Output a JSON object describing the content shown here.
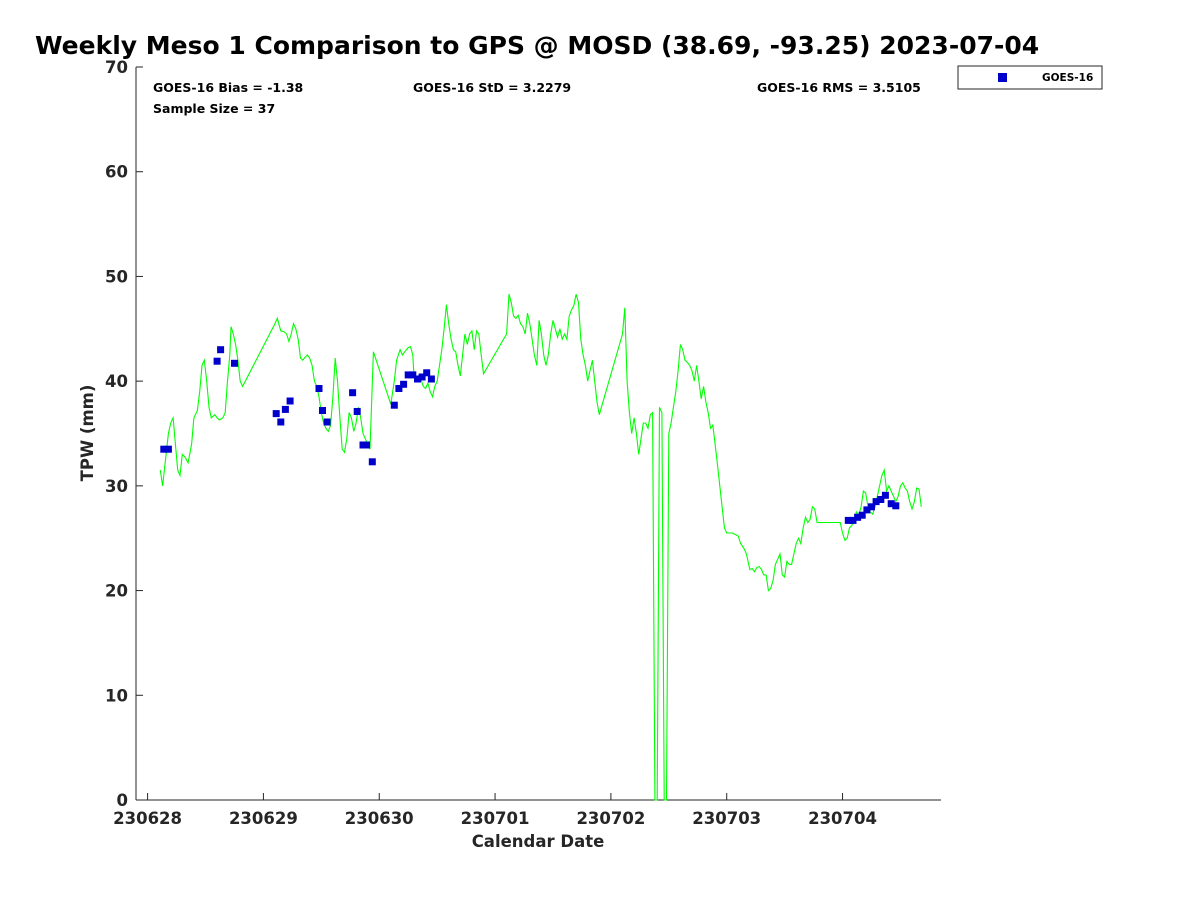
{
  "chart_data": {
    "type": "line",
    "title": "Weekly Meso 1 Comparison to GPS @ MOSD (38.69, -93.25) 2023-07-04",
    "xlabel": "Calendar Date",
    "ylabel": "TPW (mm)",
    "x_unit": "days since 230628 00Z",
    "xlim": [
      -0.1,
      6.85
    ],
    "ylim": [
      0,
      70
    ],
    "yticks": [
      0,
      10,
      20,
      30,
      40,
      50,
      60,
      70
    ],
    "xticks": [
      0,
      1,
      2,
      3,
      4,
      5,
      6
    ],
    "xtick_labels": [
      "230628",
      "230629",
      "230630",
      "230701",
      "230702",
      "230703",
      "230704"
    ],
    "grid": false,
    "legend_position": "top-right",
    "stats": {
      "bias": "GOES-16 Bias = -1.38",
      "sample_size": "Sample Size = 37",
      "std": "GOES-16 StD = 3.2279",
      "rms": "GOES-16 RMS = 3.5105"
    },
    "series": [
      {
        "name": "GPS",
        "kind": "line",
        "color": "#00ff00",
        "points": [
          [
            0.11,
            31.5
          ],
          [
            0.13,
            30
          ],
          [
            0.16,
            33
          ],
          [
            0.18,
            35
          ],
          [
            0.2,
            36
          ],
          [
            0.22,
            36.5
          ],
          [
            0.24,
            34
          ],
          [
            0.26,
            31.5
          ],
          [
            0.28,
            31
          ],
          [
            0.3,
            33
          ],
          [
            0.32,
            32.8
          ],
          [
            0.35,
            32.2
          ],
          [
            0.38,
            34
          ],
          [
            0.4,
            36.5
          ],
          [
            0.43,
            37.2
          ],
          [
            0.45,
            39
          ],
          [
            0.47,
            41.5
          ],
          [
            0.49,
            42
          ],
          [
            0.51,
            40
          ],
          [
            0.53,
            37.5
          ],
          [
            0.55,
            36.5
          ],
          [
            0.58,
            36.8
          ],
          [
            0.6,
            36.5
          ],
          [
            0.62,
            36.3
          ],
          [
            0.65,
            36.5
          ],
          [
            0.67,
            37
          ],
          [
            0.69,
            40
          ],
          [
            0.71,
            42.5
          ],
          [
            0.72,
            45.2
          ],
          [
            0.74,
            44.5
          ],
          [
            0.76,
            43.5
          ],
          [
            0.78,
            42
          ],
          [
            0.8,
            40
          ],
          [
            0.82,
            39.5
          ],
          [
            1.1,
            45.5
          ],
          [
            1.12,
            46
          ],
          [
            1.15,
            44.8
          ],
          [
            1.18,
            44.7
          ],
          [
            1.2,
            44.5
          ],
          [
            1.22,
            43.8
          ],
          [
            1.24,
            44.5
          ],
          [
            1.26,
            45.5
          ],
          [
            1.28,
            45
          ],
          [
            1.3,
            44
          ],
          [
            1.32,
            42.2
          ],
          [
            1.34,
            42
          ],
          [
            1.36,
            42.3
          ],
          [
            1.38,
            42.5
          ],
          [
            1.4,
            42.2
          ],
          [
            1.42,
            41.5
          ],
          [
            1.44,
            40
          ],
          [
            1.46,
            39.5
          ],
          [
            1.48,
            38.5
          ],
          [
            1.5,
            37
          ],
          [
            1.52,
            36
          ],
          [
            1.54,
            35.5
          ],
          [
            1.56,
            35.2
          ],
          [
            1.58,
            35.8
          ],
          [
            1.6,
            38.5
          ],
          [
            1.62,
            42.2
          ],
          [
            1.64,
            40
          ],
          [
            1.66,
            36.5
          ],
          [
            1.68,
            33.5
          ],
          [
            1.7,
            33.2
          ],
          [
            1.72,
            34.5
          ],
          [
            1.74,
            37
          ],
          [
            1.76,
            36.5
          ],
          [
            1.78,
            35.2
          ],
          [
            1.8,
            36
          ],
          [
            1.82,
            37.5
          ],
          [
            1.84,
            36.5
          ],
          [
            1.86,
            35
          ],
          [
            1.88,
            34.5
          ],
          [
            1.9,
            34
          ],
          [
            1.92,
            33.5
          ],
          [
            1.95,
            42.8
          ],
          [
            2.1,
            37.8
          ],
          [
            2.13,
            40
          ],
          [
            2.15,
            42
          ],
          [
            2.18,
            43
          ],
          [
            2.2,
            42.5
          ],
          [
            2.22,
            42.8
          ],
          [
            2.25,
            43.2
          ],
          [
            2.27,
            43.3
          ],
          [
            2.29,
            42.5
          ],
          [
            2.3,
            40.5
          ],
          [
            2.32,
            40.2
          ],
          [
            2.34,
            40.5
          ],
          [
            2.36,
            40.2
          ],
          [
            2.38,
            39.5
          ],
          [
            2.4,
            39.3
          ],
          [
            2.42,
            39.8
          ],
          [
            2.44,
            39
          ],
          [
            2.46,
            38.5
          ],
          [
            2.48,
            39.5
          ],
          [
            2.5,
            40
          ],
          [
            2.52,
            41.5
          ],
          [
            2.54,
            43
          ],
          [
            2.56,
            45
          ],
          [
            2.58,
            47.3
          ],
          [
            2.6,
            45.5
          ],
          [
            2.62,
            44
          ],
          [
            2.64,
            43
          ],
          [
            2.66,
            42.8
          ],
          [
            2.68,
            41.5
          ],
          [
            2.7,
            40.5
          ],
          [
            2.72,
            42.5
          ],
          [
            2.74,
            44.5
          ],
          [
            2.76,
            43.5
          ],
          [
            2.78,
            44.5
          ],
          [
            2.8,
            44.8
          ],
          [
            2.82,
            43
          ],
          [
            2.84,
            44.8
          ],
          [
            2.86,
            44.5
          ],
          [
            2.88,
            42.5
          ],
          [
            2.9,
            40.7
          ],
          [
            3.1,
            44.5
          ],
          [
            3.12,
            48.3
          ],
          [
            3.14,
            47.5
          ],
          [
            3.16,
            46.2
          ],
          [
            3.18,
            46
          ],
          [
            3.2,
            46.3
          ],
          [
            3.22,
            45.5
          ],
          [
            3.24,
            45.2
          ],
          [
            3.26,
            44.5
          ],
          [
            3.28,
            46.5
          ],
          [
            3.3,
            45.5
          ],
          [
            3.32,
            44
          ],
          [
            3.34,
            42.5
          ],
          [
            3.36,
            41.5
          ],
          [
            3.38,
            45.8
          ],
          [
            3.4,
            44.5
          ],
          [
            3.42,
            42.5
          ],
          [
            3.44,
            41.5
          ],
          [
            3.46,
            42.5
          ],
          [
            3.48,
            44.5
          ],
          [
            3.5,
            45.8
          ],
          [
            3.52,
            45
          ],
          [
            3.54,
            44.2
          ],
          [
            3.56,
            45
          ],
          [
            3.58,
            44
          ],
          [
            3.6,
            44.5
          ],
          [
            3.62,
            44
          ],
          [
            3.64,
            46.2
          ],
          [
            3.66,
            46.8
          ],
          [
            3.68,
            47.2
          ],
          [
            3.7,
            48.3
          ],
          [
            3.72,
            47.5
          ],
          [
            3.74,
            44
          ],
          [
            3.76,
            42.5
          ],
          [
            3.78,
            41.5
          ],
          [
            3.8,
            40
          ],
          [
            3.82,
            41
          ],
          [
            3.84,
            42
          ],
          [
            3.86,
            40
          ],
          [
            3.88,
            38
          ],
          [
            3.9,
            36.8
          ],
          [
            4.1,
            44.5
          ],
          [
            4.12,
            47
          ],
          [
            4.14,
            40
          ],
          [
            4.16,
            37
          ],
          [
            4.18,
            35
          ],
          [
            4.2,
            36.5
          ],
          [
            4.22,
            35
          ],
          [
            4.24,
            33
          ],
          [
            4.26,
            34.5
          ],
          [
            4.28,
            36
          ],
          [
            4.3,
            36
          ],
          [
            4.32,
            35.5
          ],
          [
            4.34,
            36.8
          ],
          [
            4.36,
            37
          ],
          [
            4.38,
            0
          ],
          [
            4.4,
            0
          ],
          [
            4.42,
            37.5
          ],
          [
            4.44,
            37
          ],
          [
            4.46,
            0
          ],
          [
            4.48,
            0
          ],
          [
            4.5,
            35
          ],
          [
            4.52,
            36
          ],
          [
            4.54,
            37.5
          ],
          [
            4.56,
            39
          ],
          [
            4.58,
            41
          ],
          [
            4.6,
            43.5
          ],
          [
            4.62,
            43
          ],
          [
            4.64,
            42
          ],
          [
            4.66,
            41.8
          ],
          [
            4.68,
            41.5
          ],
          [
            4.7,
            41
          ],
          [
            4.72,
            40
          ],
          [
            4.74,
            41.5
          ],
          [
            4.76,
            40
          ],
          [
            4.78,
            38.3
          ],
          [
            4.8,
            39.5
          ],
          [
            4.82,
            38
          ],
          [
            4.84,
            37
          ],
          [
            4.86,
            35.5
          ],
          [
            4.88,
            35.8
          ],
          [
            4.9,
            34
          ],
          [
            4.92,
            32
          ],
          [
            4.94,
            30
          ],
          [
            4.96,
            28
          ],
          [
            4.98,
            26
          ],
          [
            5,
            25.5
          ],
          [
            5.05,
            25.5
          ],
          [
            5.1,
            25.2
          ],
          [
            5.12,
            24.5
          ],
          [
            5.15,
            24
          ],
          [
            5.17,
            23.5
          ],
          [
            5.2,
            22
          ],
          [
            5.22,
            22.1
          ],
          [
            5.24,
            21.8
          ],
          [
            5.26,
            22.2
          ],
          [
            5.28,
            22.3
          ],
          [
            5.3,
            22
          ],
          [
            5.32,
            21.5
          ],
          [
            5.34,
            21.5
          ],
          [
            5.36,
            20
          ],
          [
            5.38,
            20.2
          ],
          [
            5.4,
            21
          ],
          [
            5.42,
            22.5
          ],
          [
            5.44,
            23
          ],
          [
            5.46,
            23.5
          ],
          [
            5.48,
            21.5
          ],
          [
            5.5,
            21.3
          ],
          [
            5.52,
            22.8
          ],
          [
            5.54,
            22.5
          ],
          [
            5.56,
            22.5
          ],
          [
            5.58,
            23.5
          ],
          [
            5.6,
            24.5
          ],
          [
            5.62,
            25
          ],
          [
            5.64,
            24.5
          ],
          [
            5.66,
            26
          ],
          [
            5.68,
            27
          ],
          [
            5.7,
            26.5
          ],
          [
            5.72,
            26.8
          ],
          [
            5.74,
            28
          ],
          [
            5.76,
            27.8
          ],
          [
            5.78,
            26.5
          ],
          [
            5.98,
            26.5
          ],
          [
            6,
            25.5
          ],
          [
            6.02,
            24.8
          ],
          [
            6.04,
            25
          ],
          [
            6.06,
            26
          ],
          [
            6.08,
            26.2
          ],
          [
            6.1,
            26.8
          ],
          [
            6.12,
            27.5
          ],
          [
            6.14,
            27.2
          ],
          [
            6.16,
            28
          ],
          [
            6.18,
            29.5
          ],
          [
            6.2,
            29.3
          ],
          [
            6.22,
            28
          ],
          [
            6.24,
            27.5
          ],
          [
            6.26,
            27.3
          ],
          [
            6.28,
            28
          ],
          [
            6.3,
            29
          ],
          [
            6.32,
            30
          ],
          [
            6.34,
            31
          ],
          [
            6.36,
            31.5
          ],
          [
            6.38,
            29.5
          ],
          [
            6.4,
            30
          ],
          [
            6.42,
            29.5
          ],
          [
            6.44,
            29
          ],
          [
            6.46,
            28.5
          ],
          [
            6.48,
            29
          ],
          [
            6.5,
            30
          ],
          [
            6.52,
            30.3
          ],
          [
            6.54,
            29.8
          ],
          [
            6.56,
            29.5
          ],
          [
            6.58,
            28.5
          ],
          [
            6.6,
            27.8
          ],
          [
            6.62,
            28.5
          ],
          [
            6.64,
            29.8
          ],
          [
            6.66,
            29.7
          ],
          [
            6.68,
            28
          ]
        ]
      },
      {
        "name": "GOES-16",
        "kind": "scatter",
        "color": "#0000cc",
        "points": [
          [
            0.14,
            33.5
          ],
          [
            0.18,
            33.5
          ],
          [
            0.6,
            41.9
          ],
          [
            0.63,
            43
          ],
          [
            0.75,
            41.7
          ],
          [
            1.11,
            36.9
          ],
          [
            1.15,
            36.1
          ],
          [
            1.19,
            37.3
          ],
          [
            1.23,
            38.1
          ],
          [
            1.48,
            39.3
          ],
          [
            1.51,
            37.2
          ],
          [
            1.55,
            36.1
          ],
          [
            1.77,
            38.9
          ],
          [
            1.81,
            37.1
          ],
          [
            1.86,
            33.9
          ],
          [
            1.89,
            33.9
          ],
          [
            1.94,
            32.3
          ],
          [
            2.13,
            37.7
          ],
          [
            2.17,
            39.3
          ],
          [
            2.21,
            39.7
          ],
          [
            2.25,
            40.6
          ],
          [
            2.29,
            40.6
          ],
          [
            2.33,
            40.2
          ],
          [
            2.37,
            40.4
          ],
          [
            2.41,
            40.8
          ],
          [
            2.45,
            40.2
          ],
          [
            6.05,
            26.7
          ],
          [
            6.09,
            26.7
          ],
          [
            6.13,
            27
          ],
          [
            6.17,
            27.2
          ],
          [
            6.21,
            27.7
          ],
          [
            6.25,
            28
          ],
          [
            6.29,
            28.5
          ],
          [
            6.33,
            28.7
          ],
          [
            6.37,
            29.1
          ],
          [
            6.42,
            28.3
          ],
          [
            6.46,
            28.1
          ]
        ]
      }
    ]
  }
}
